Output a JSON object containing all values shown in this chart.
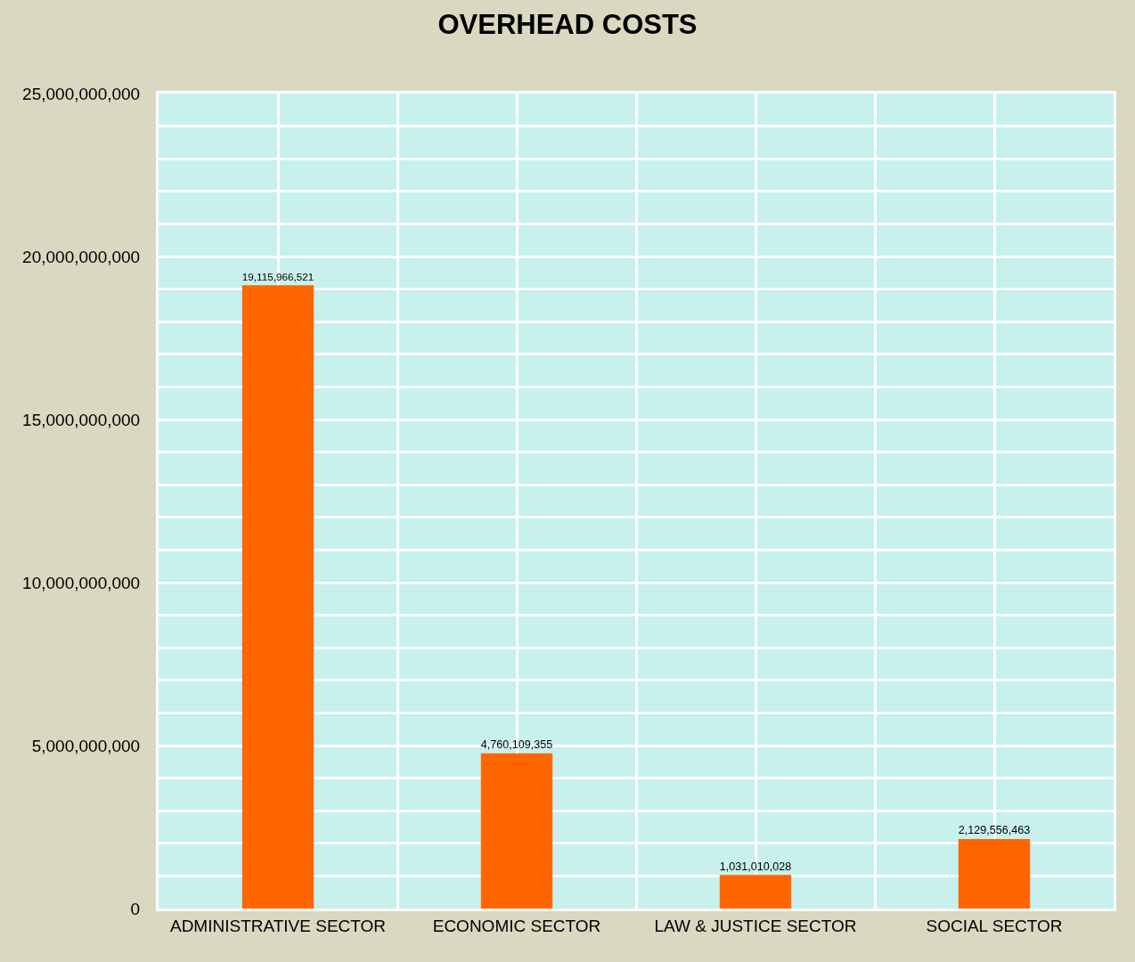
{
  "chart_data": {
    "type": "bar",
    "title": "OVERHEAD COSTS",
    "categories": [
      "ADMINISTRATIVE SECTOR",
      "ECONOMIC SECTOR",
      "LAW & JUSTICE SECTOR",
      "SOCIAL SECTOR"
    ],
    "values": [
      19115966521,
      4760109355,
      1031010028,
      2129556463
    ],
    "value_labels": [
      "19,115,966,521",
      "4,760,109,355",
      "1,031,010,028",
      "2,129,556,463"
    ],
    "color": "#ff6600",
    "ylim": [
      0,
      25000000000
    ],
    "yticks": [
      {
        "value": 0,
        "label": "0"
      },
      {
        "value": 5000000000,
        "label": "5,000,000,000"
      },
      {
        "value": 10000000000,
        "label": "10,000,000,000"
      },
      {
        "value": 15000000000,
        "label": "15,000,000,000"
      },
      {
        "value": 20000000000,
        "label": "20,000,000,000"
      },
      {
        "value": 25000000000,
        "label": "25,000,000,000"
      }
    ],
    "grid": true,
    "legend": false
  }
}
